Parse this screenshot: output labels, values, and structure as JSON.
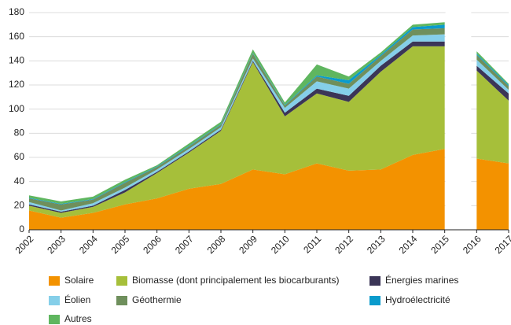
{
  "chart_data": {
    "type": "stacked_area",
    "x": [
      2002,
      2003,
      2004,
      2005,
      2006,
      2007,
      2008,
      2009,
      2010,
      2011,
      2012,
      2013,
      2014,
      2015,
      2016,
      2017
    ],
    "x_break": [
      2015,
      2016
    ],
    "xlim": [
      2002,
      2017
    ],
    "xticks": [
      2002,
      2003,
      2004,
      2005,
      2006,
      2007,
      2008,
      2009,
      2010,
      2011,
      2012,
      2013,
      2014,
      2015,
      2016,
      2017
    ],
    "ylim": [
      0,
      180
    ],
    "yticks": [
      0,
      20,
      40,
      60,
      80,
      100,
      120,
      140,
      160,
      180
    ],
    "grid": true,
    "legend": "bottom",
    "series": [
      {
        "name": "Solaire",
        "color": "#f39200",
        "values": [
          16,
          10,
          14,
          21,
          26,
          34,
          38,
          50,
          46,
          55,
          49,
          50,
          62,
          67,
          59,
          55
        ]
      },
      {
        "name": "Biomasse (dont principalement les biocarburants)",
        "color": "#a6bf3a",
        "values": [
          4,
          4,
          5,
          10,
          21,
          30,
          44,
          89,
          48,
          58,
          57,
          81,
          90,
          85,
          73,
          52
        ]
      },
      {
        "name": "Énergies marines",
        "color": "#3b3557",
        "values": [
          1,
          1,
          1,
          2,
          1,
          1,
          1,
          1,
          3,
          4,
          5,
          5,
          4,
          4,
          4,
          6
        ]
      },
      {
        "name": "Éolien",
        "color": "#85cfe9",
        "values": [
          2,
          1,
          2,
          2,
          2,
          2,
          2,
          2,
          4,
          6,
          6,
          4,
          5,
          6,
          5,
          3
        ]
      },
      {
        "name": "Géothermie",
        "color": "#6f8f5c",
        "values": [
          3,
          5,
          3,
          4,
          2,
          2,
          2,
          4,
          2,
          4,
          4,
          4,
          5,
          5,
          4,
          3
        ]
      },
      {
        "name": "Hydroélectricité",
        "color": "#0a9bcc",
        "values": [
          0.5,
          0.5,
          0.5,
          0.5,
          0.5,
          0.5,
          0.5,
          0.5,
          0.5,
          1,
          3,
          1,
          2,
          3,
          1,
          1
        ]
      },
      {
        "name": "Autres",
        "color": "#5fb65f",
        "values": [
          2,
          2,
          2,
          2,
          1,
          2,
          2,
          3,
          2,
          9,
          3,
          2,
          2,
          2,
          2,
          1
        ]
      }
    ]
  }
}
